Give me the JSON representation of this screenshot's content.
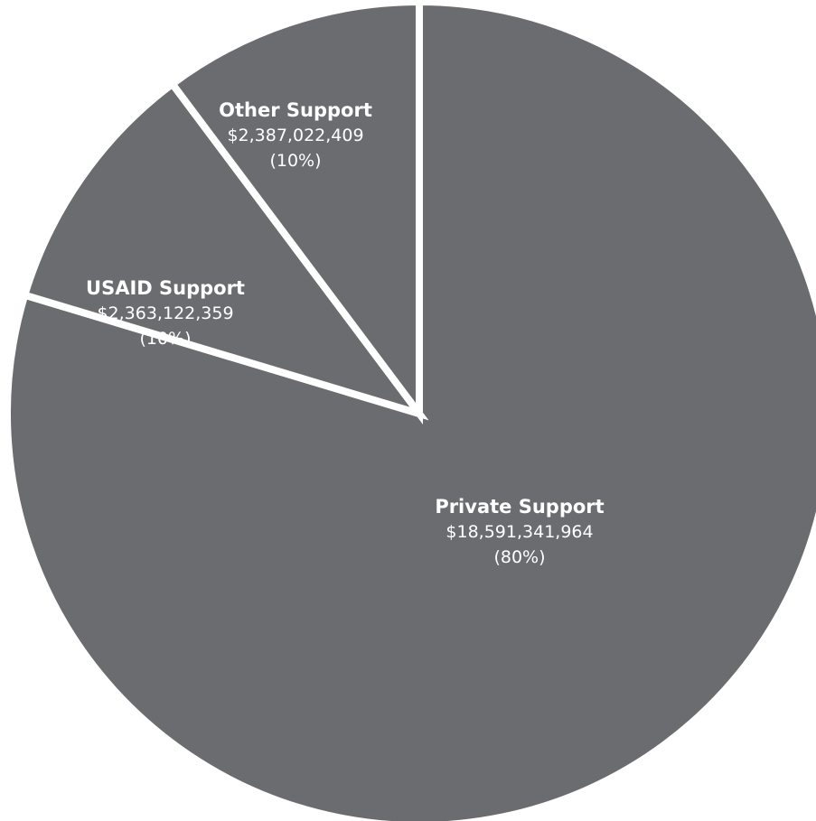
{
  "chart_data": {
    "type": "pie",
    "title": "",
    "start_angle_deg": 0,
    "direction": "clockwise",
    "slice_color": "#6b6c70",
    "separator_color": "#ffffff",
    "slices": [
      {
        "label": "Private Support",
        "value": 18591341964,
        "value_label": "$18,591,341,964",
        "percent_label": "(80%)"
      },
      {
        "label": "USAID Support",
        "value": 2363122359,
        "value_label": "$2,363,122,359",
        "percent_label": "(10%)"
      },
      {
        "label": "Other Support",
        "value": 2387022409,
        "value_label": "$2,387,022,409",
        "percent_label": "(10%)"
      }
    ]
  }
}
